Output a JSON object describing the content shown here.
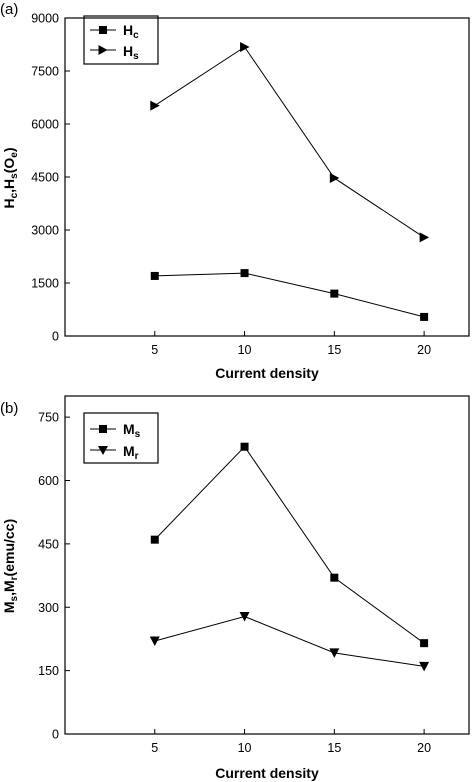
{
  "chart_data": [
    {
      "type": "line",
      "panel_label": "(a)",
      "x": [
        5,
        10,
        15,
        20
      ],
      "xlabel": "Current density",
      "ylabel": {
        "parts": [
          "H",
          "c",
          ",H",
          "s",
          "(O",
          "e",
          ")"
        ]
      },
      "xlim": [
        0,
        22.5
      ],
      "ylim": [
        0,
        9000
      ],
      "yticks": [
        "0",
        "1500",
        "3000",
        "4500",
        "6000",
        "7500",
        "9000"
      ],
      "xticks": [
        "5",
        "10",
        "15",
        "20"
      ],
      "legend_position": "top-left",
      "series": [
        {
          "name": "Hc",
          "name_main": "H",
          "name_sub": "c",
          "marker": "square",
          "values": [
            1700,
            1780,
            1200,
            540
          ]
        },
        {
          "name": "Hs",
          "name_main": "H",
          "name_sub": "s",
          "marker": "triangle-right",
          "values": [
            6520,
            8180,
            4470,
            2790
          ]
        }
      ]
    },
    {
      "type": "line",
      "panel_label": "(b)",
      "x": [
        5,
        10,
        15,
        20
      ],
      "xlabel": "Current density",
      "ylabel": {
        "parts": [
          "M",
          "s",
          ",M",
          "r",
          "(emu/cc)"
        ]
      },
      "xlim": [
        0,
        22.5
      ],
      "ylim": [
        0,
        800
      ],
      "yticks": [
        "0",
        "150",
        "300",
        "450",
        "600",
        "750"
      ],
      "xticks": [
        "5",
        "10",
        "15",
        "20"
      ],
      "legend_position": "top-left",
      "series": [
        {
          "name": "Ms",
          "name_main": "M",
          "name_sub": "s",
          "marker": "square",
          "values": [
            460,
            680,
            370,
            215
          ]
        },
        {
          "name": "Mr",
          "name_main": "M",
          "name_sub": "r",
          "marker": "triangle-down",
          "values": [
            220,
            278,
            192,
            160
          ]
        }
      ]
    }
  ]
}
